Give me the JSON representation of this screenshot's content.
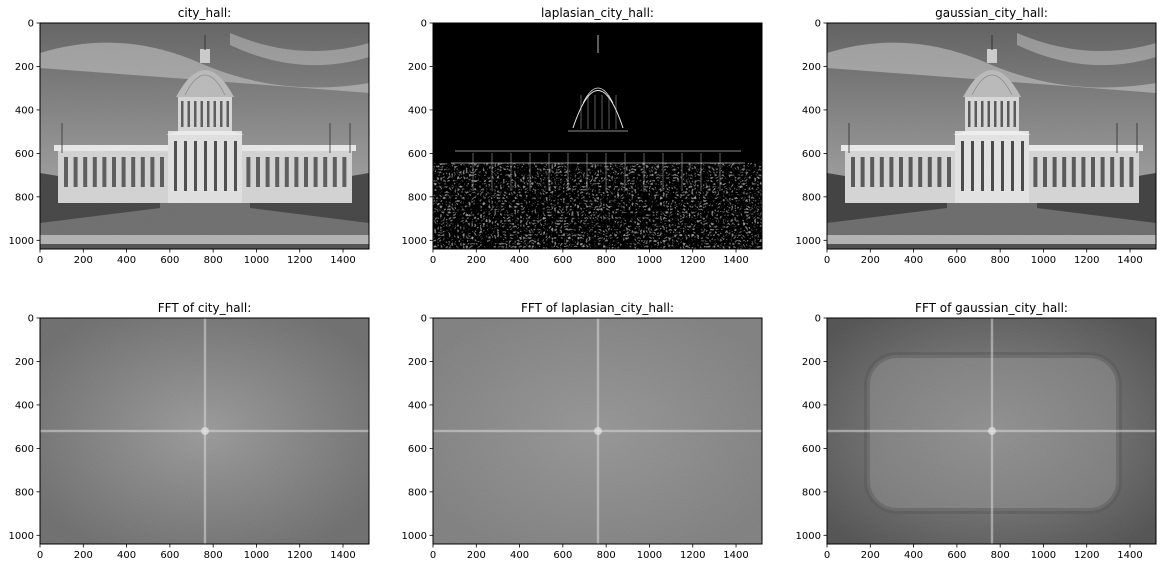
{
  "chart_data": [
    {
      "type": "image",
      "title": "city_hall:",
      "content": "grayscale photograph of a domed city hall building",
      "xlim": [
        0,
        1520
      ],
      "ylim": [
        1040,
        0
      ],
      "xticks": [
        0,
        200,
        400,
        600,
        800,
        1000,
        1200,
        1400
      ],
      "yticks": [
        0,
        200,
        400,
        600,
        800,
        1000
      ]
    },
    {
      "type": "image",
      "title": "laplasian_city_hall:",
      "content": "edge map (Laplacian filter) of the city hall photograph",
      "xlim": [
        0,
        1520
      ],
      "ylim": [
        1040,
        0
      ],
      "xticks": [
        0,
        200,
        400,
        600,
        800,
        1000,
        1200,
        1400
      ],
      "yticks": [
        0,
        200,
        400,
        600,
        800,
        1000
      ]
    },
    {
      "type": "image",
      "title": "gaussian_city_hall:",
      "content": "Gaussian-filtered city hall photograph",
      "xlim": [
        0,
        1520
      ],
      "ylim": [
        1040,
        0
      ],
      "xticks": [
        0,
        200,
        400,
        600,
        800,
        1000,
        1200,
        1400
      ],
      "yticks": [
        0,
        200,
        400,
        600,
        800,
        1000
      ]
    },
    {
      "type": "image",
      "title": "FFT of city_hall:",
      "content": "log-magnitude FFT spectrum with central cross",
      "xlim": [
        0,
        1520
      ],
      "ylim": [
        1040,
        0
      ],
      "xticks": [
        0,
        200,
        400,
        600,
        800,
        1000,
        1200,
        1400
      ],
      "yticks": [
        0,
        200,
        400,
        600,
        800,
        1000
      ]
    },
    {
      "type": "image",
      "title": "FFT of laplasian_city_hall:",
      "content": "log-magnitude FFT spectrum with central cross",
      "xlim": [
        0,
        1520
      ],
      "ylim": [
        1040,
        0
      ],
      "xticks": [
        0,
        200,
        400,
        600,
        800,
        1000,
        1200,
        1400
      ],
      "yticks": [
        0,
        200,
        400,
        600,
        800,
        1000
      ]
    },
    {
      "type": "image",
      "title": "FFT of gaussian_city_hall:",
      "content": "log-magnitude FFT spectrum with central cross and dark frame pattern",
      "xlim": [
        0,
        1520
      ],
      "ylim": [
        1040,
        0
      ],
      "xticks": [
        0,
        200,
        400,
        600,
        800,
        1000,
        1200,
        1400
      ],
      "yticks": [
        0,
        200,
        400,
        600,
        800,
        1000
      ]
    }
  ]
}
